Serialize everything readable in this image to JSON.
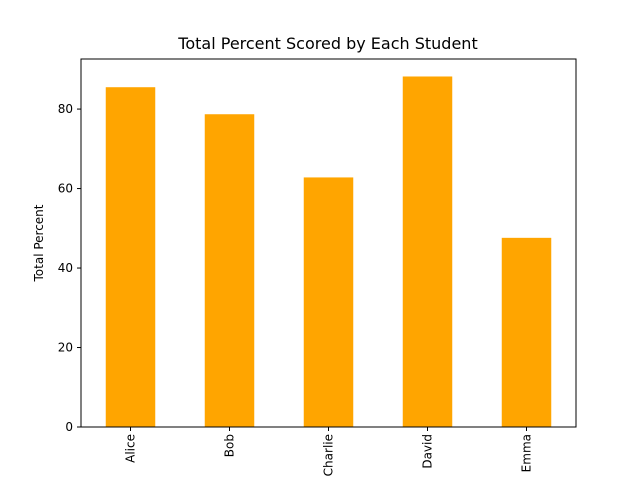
{
  "chart_data": {
    "type": "bar",
    "title": "Total Percent Scored by Each Student",
    "xlabel": "",
    "ylabel": "Total Percent",
    "categories": [
      "Alice",
      "Bob",
      "Charlie",
      "David",
      "Emma"
    ],
    "values": [
      85.5,
      78.7,
      62.8,
      88.2,
      47.6
    ],
    "ylim": [
      0,
      92.6
    ],
    "yticks": [
      0,
      20,
      40,
      60,
      80
    ],
    "grid": false,
    "bar_color": "#ffa500",
    "tick_label_rotation": "vertical"
  }
}
